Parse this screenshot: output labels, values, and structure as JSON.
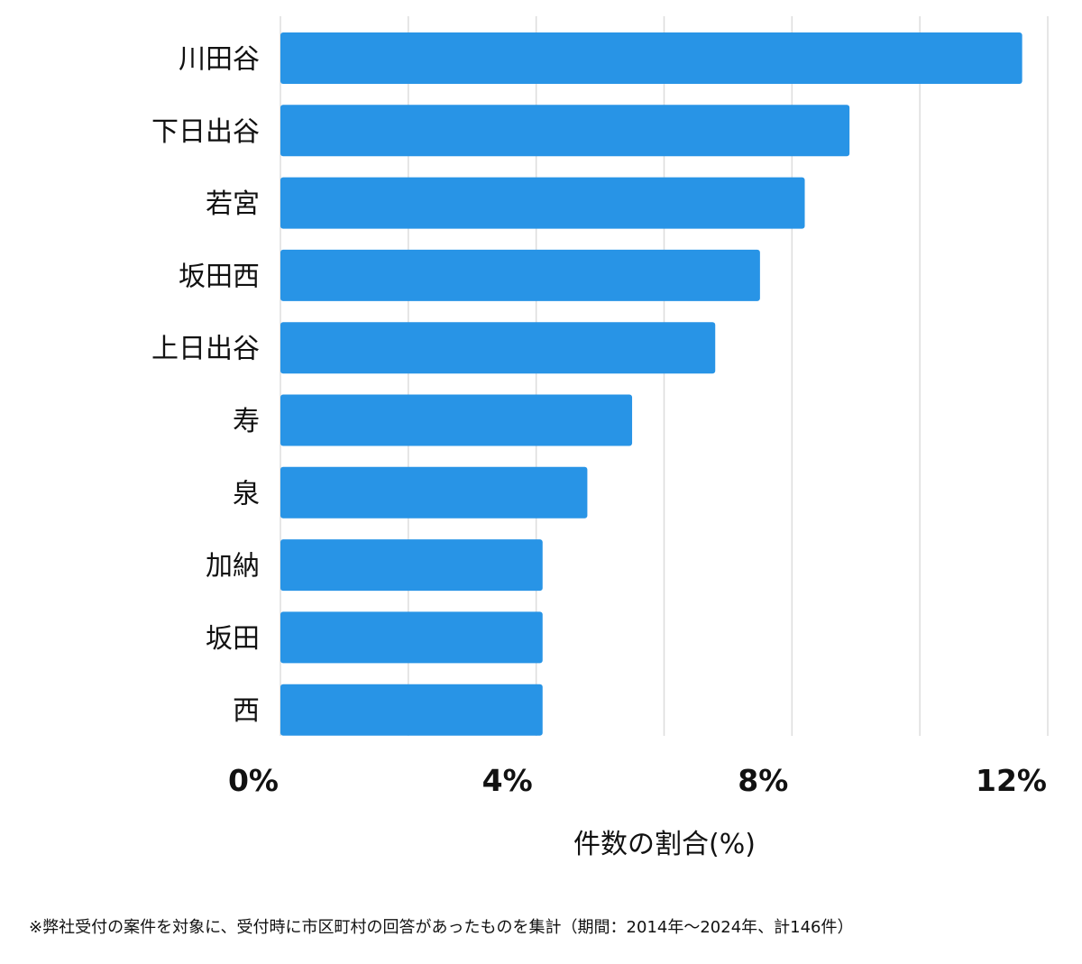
{
  "chart_data": {
    "type": "bar",
    "orientation": "horizontal",
    "categories": [
      "川田谷",
      "下日出谷",
      "若宮",
      "坂田西",
      "上日出谷",
      "寿",
      "泉",
      "加納",
      "坂田",
      "西"
    ],
    "values": [
      11.6,
      8.9,
      8.2,
      7.5,
      6.8,
      5.5,
      4.8,
      4.1,
      4.1,
      4.1
    ],
    "xlim": [
      0,
      12
    ],
    "ticks": [
      0,
      4,
      8,
      12
    ],
    "tick_labels": [
      "0%",
      "4%",
      "8%",
      "12%"
    ],
    "gridline_values": [
      0,
      2,
      4,
      6,
      8,
      10,
      12
    ],
    "xlabel": "件数の割合(%)",
    "ylabel": "",
    "bar_color": "#2894e6",
    "grid_color": "#dddddd"
  },
  "footnote": "※弊社受付の案件を対象に、受付時に市区町村の回答があったものを集計（期間：2014年～2024年、計146件）"
}
